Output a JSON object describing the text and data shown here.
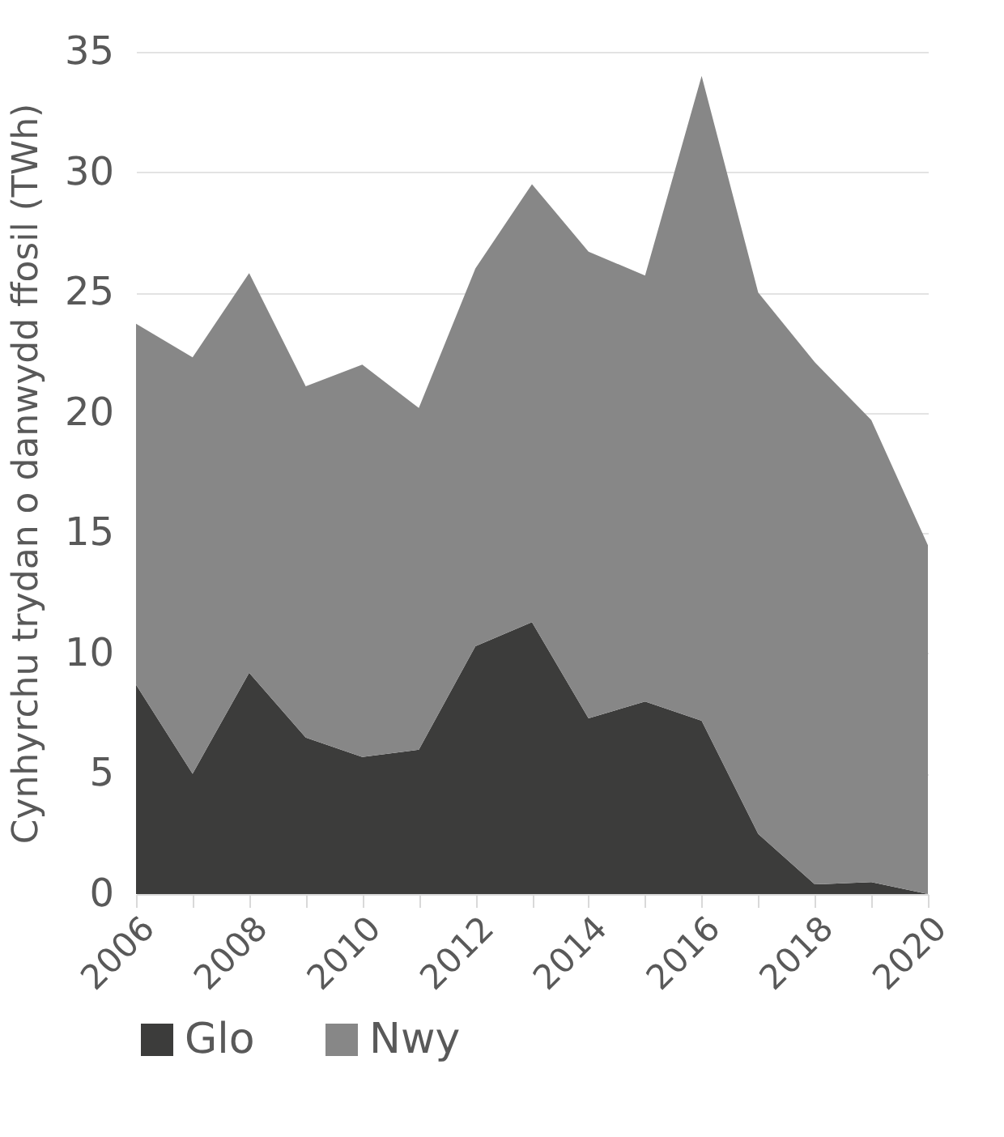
{
  "chart_data": {
    "type": "area",
    "stacked": true,
    "ylabel": "Cynhyrchu trydan o danwydd ffosil (TWh)",
    "x": [
      2006,
      2007,
      2008,
      2009,
      2010,
      2011,
      2012,
      2013,
      2014,
      2015,
      2016,
      2017,
      2018,
      2019,
      2020
    ],
    "series": [
      {
        "name": "Glo",
        "color": "#3c3c3b",
        "values": [
          8.7,
          5.0,
          9.2,
          6.5,
          5.7,
          6.0,
          10.3,
          11.3,
          7.3,
          8.0,
          7.2,
          2.5,
          0.4,
          0.5,
          0
        ]
      },
      {
        "name": "Nwy",
        "color": "#878787",
        "values": [
          15.0,
          17.3,
          16.6,
          14.6,
          16.3,
          14.2,
          15.7,
          18.2,
          19.4,
          17.7,
          26.8,
          22.5,
          21.7,
          19.2,
          14.5
        ]
      }
    ],
    "xlim": [
      2006,
      2020
    ],
    "xticks": [
      2006,
      {
        "value": 2007,
        "label": null
      },
      2008,
      {
        "value": 2009,
        "label": null
      },
      2010,
      {
        "value": 2011,
        "label": null
      },
      2012,
      {
        "value": 2013,
        "label": null
      },
      2014,
      {
        "value": 2015,
        "label": null
      },
      2016,
      {
        "value": 2017,
        "label": null
      },
      2018,
      {
        "value": 2019,
        "label": null
      },
      2020
    ],
    "ylim": [
      0,
      35
    ],
    "yticks": [
      0,
      5,
      10,
      15,
      20,
      25,
      30,
      35
    ],
    "grid": "y",
    "legend": "bottom"
  }
}
